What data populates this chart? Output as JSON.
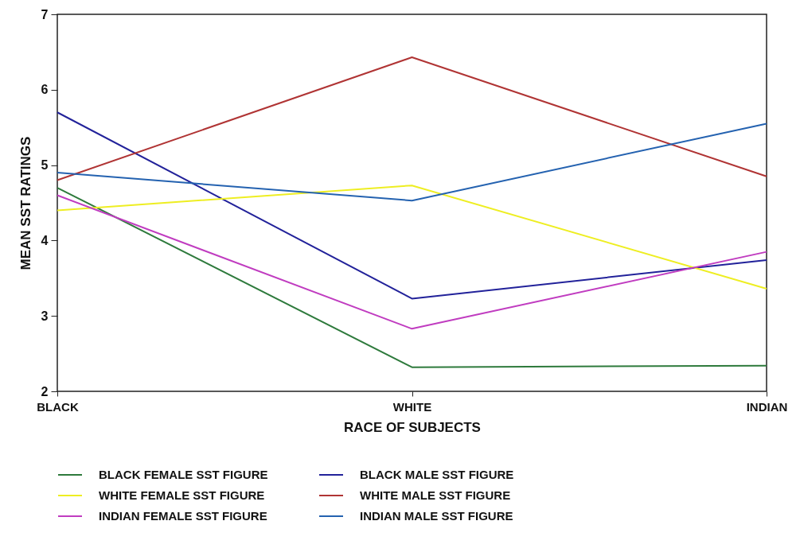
{
  "chart_data": {
    "type": "line",
    "xlabel": "RACE OF SUBJECTS",
    "ylabel": "MEAN SST RATINGS",
    "categories": [
      "BLACK",
      "WHITE",
      "INDIAN"
    ],
    "series": [
      {
        "name": "BLACK FEMALE SST FIGURE",
        "color": "#2e7a3c",
        "values": [
          4.7,
          2.32,
          2.34
        ]
      },
      {
        "name": "BLACK MALE SST FIGURE",
        "color": "#22229a",
        "values": [
          5.7,
          3.23,
          3.74
        ]
      },
      {
        "name": "WHITE FEMALE SST FIGURE",
        "color": "#eeee22",
        "values": [
          4.4,
          4.73,
          3.36
        ]
      },
      {
        "name": "WHITE MALE SST FIGURE",
        "color": "#b03434",
        "values": [
          4.8,
          6.43,
          4.85
        ]
      },
      {
        "name": "INDIAN FEMALE SST FIGURE",
        "color": "#c03cc0",
        "values": [
          4.6,
          2.83,
          3.85
        ]
      },
      {
        "name": "INDIAN MALE SST FIGURE",
        "color": "#2462b0",
        "values": [
          4.9,
          4.53,
          5.55
        ]
      }
    ],
    "ylim": [
      2,
      7
    ],
    "yticks": [
      2,
      3,
      4,
      5,
      6,
      7
    ],
    "grid": false,
    "legend": "bottom",
    "marker": "none",
    "line_style": "solid"
  }
}
